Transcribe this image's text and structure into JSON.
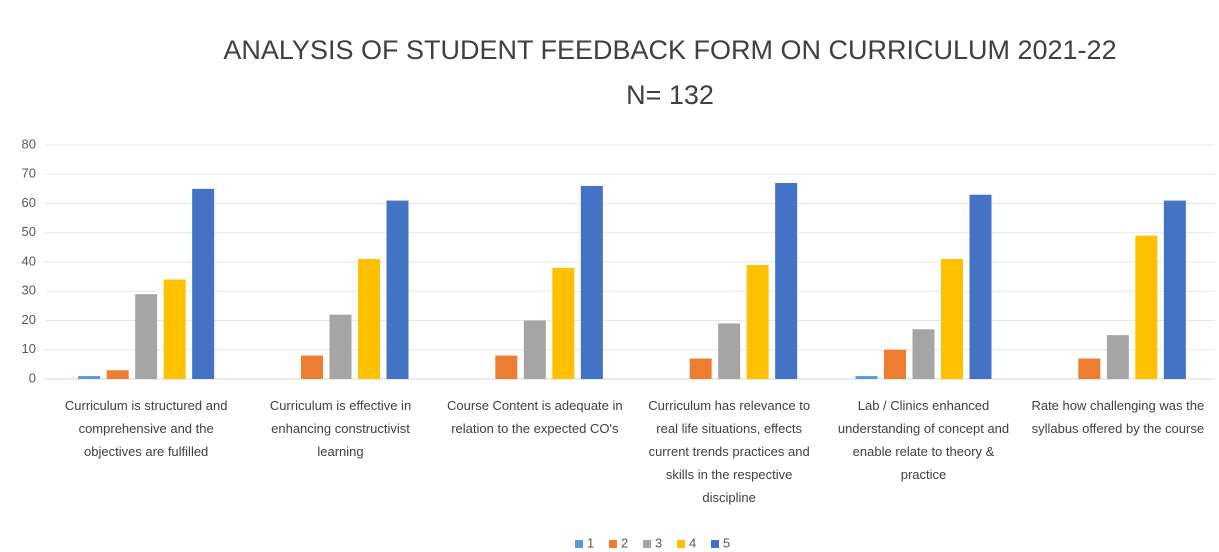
{
  "chart_data": {
    "type": "bar",
    "title": "ANALYSIS OF STUDENT FEEDBACK FORM ON CURRICULUM 2021-22",
    "subtitle": "N= 132",
    "categories": [
      "Curriculum is structured and comprehensive and the objectives are fulfilled",
      "Curriculum is effective in enhancing constructivist learning",
      "Course Content is adequate in relation to the expected CO's",
      "Curriculum has relevance to real life situations, effects current trends practices and skills in the respective discipline",
      "Lab / Clinics enhanced understanding of concept and enable relate to theory & practice",
      "Rate how challenging was the syllabus offered by the course"
    ],
    "series": [
      {
        "name": "1",
        "color": "#5b9bd5",
        "values": [
          1,
          0,
          0,
          0,
          1,
          0
        ]
      },
      {
        "name": "2",
        "color": "#ed7d31",
        "values": [
          3,
          8,
          8,
          7,
          10,
          7
        ]
      },
      {
        "name": "3",
        "color": "#a5a5a5",
        "values": [
          29,
          22,
          20,
          19,
          17,
          15
        ]
      },
      {
        "name": "4",
        "color": "#ffc000",
        "values": [
          34,
          41,
          38,
          39,
          41,
          49
        ]
      },
      {
        "name": "5",
        "color": "#4472c4",
        "values": [
          65,
          61,
          66,
          67,
          63,
          61
        ]
      }
    ],
    "ylim": [
      0,
      80
    ],
    "yticks": [
      0,
      10,
      20,
      30,
      40,
      50,
      60,
      70,
      80
    ],
    "grid": true,
    "legend": "bottom"
  }
}
